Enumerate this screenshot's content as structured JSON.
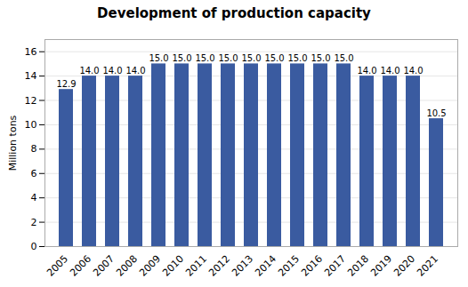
{
  "chart_data": {
    "type": "bar",
    "title": "Development of production capacity",
    "ylabel": "Million tons",
    "categories": [
      "2005",
      "2006",
      "2007",
      "2008",
      "2009",
      "2010",
      "2011",
      "2012",
      "2013",
      "2014",
      "2015",
      "2016",
      "2017",
      "2018",
      "2019",
      "2020",
      "2021"
    ],
    "values": [
      12.9,
      14.0,
      14.0,
      14.0,
      15.0,
      15.0,
      15.0,
      15.0,
      15.0,
      15.0,
      15.0,
      15.0,
      15.0,
      14.0,
      14.0,
      14.0,
      10.5
    ],
    "value_labels": [
      "12.9",
      "14.0",
      "14.0",
      "14.0",
      "15.0",
      "15.0",
      "15.0",
      "15.0",
      "15.0",
      "15.0",
      "15.0",
      "15.0",
      "15.0",
      "14.0",
      "14.0",
      "14.0",
      "10.5"
    ],
    "color": "#3A5BA0",
    "ylim": [
      0,
      17
    ],
    "yticks": [
      0,
      2,
      4,
      6,
      8,
      10,
      12,
      14,
      16
    ],
    "grid": true,
    "data_labels": true
  }
}
